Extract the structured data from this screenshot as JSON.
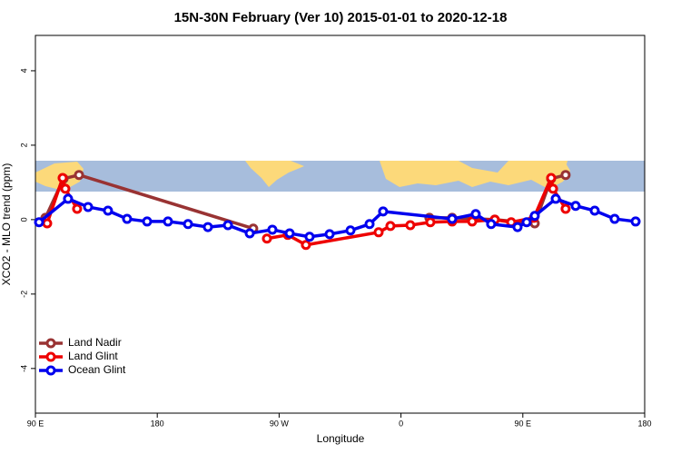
{
  "chart_data": {
    "type": "line",
    "title": "15N-30N February (Ver 10)   2015-01-01 to 2020-12-18",
    "x_label": "Longitude",
    "y_label": "XCO2 - MLO trend (ppm)",
    "xlim": [
      90,
      540
    ],
    "ylim": [
      -5.2,
      4.95
    ],
    "xticks": [
      {
        "value": 90,
        "label": "90 E"
      },
      180,
      {
        "value": 270,
        "label": "90 W"
      },
      {
        "value": 360,
        "label": "0"
      },
      {
        "value": 450,
        "label": "90 E"
      },
      {
        "value": 540,
        "label": "180"
      }
    ],
    "yticks": [
      -4,
      -2,
      0,
      2,
      4
    ],
    "legend": "bottom-left",
    "series": [
      {
        "name": "Land Nadir",
        "color": "#993333",
        "x": [
          97.4,
          110.8,
          122.2,
          250.9,
          352.2,
          381.0,
          397.8,
          429.3,
          458.8,
          470.9,
          481.6
        ],
        "values": [
          0.05,
          1.1,
          1.2,
          -0.24,
          null,
          0.05,
          0.05,
          0,
          -0.1,
          1.1,
          1.2
        ]
      },
      {
        "name": "Land Glint",
        "color": "#ee0000",
        "x": [
          98.7,
          110.1,
          112.1,
          120.8,
          251.6,
          261.0,
          276.4,
          289.8,
          343.5,
          352.2,
          366.9,
          381.7,
          397.8,
          412.6,
          429.3,
          441.4,
          458.2,
          470.9,
          472.3,
          481.6
        ],
        "values": [
          -0.1,
          1.12,
          0.83,
          0.29,
          null,
          -0.51,
          -0.41,
          -0.68,
          -0.34,
          -0.17,
          -0.15,
          -0.07,
          -0.05,
          -0.05,
          0,
          -0.07,
          0.05,
          1.12,
          0.83,
          0.29
        ]
      },
      {
        "name": "Ocean Glint",
        "color": "#0000ee",
        "x": [
          92.7,
          114.1,
          128.9,
          143.6,
          157.7,
          172.5,
          187.9,
          202.7,
          217.4,
          232.2,
          248.3,
          265.0,
          277.8,
          292.5,
          307.3,
          322.7,
          336.8,
          346.8,
          397.8,
          415.2,
          426.6,
          446.1,
          452.8,
          458.8,
          474.3,
          489.0,
          503.1,
          517.8,
          533.3
        ],
        "values": [
          -0.07,
          0.56,
          0.34,
          0.24,
          0.02,
          -0.05,
          -0.05,
          -0.12,
          -0.2,
          -0.15,
          -0.37,
          -0.27,
          -0.37,
          -0.46,
          -0.39,
          -0.29,
          -0.12,
          0.22,
          0.02,
          0.15,
          -0.12,
          -0.2,
          -0.07,
          0.1,
          0.56,
          0.37,
          0.24,
          0.02,
          -0.05
        ]
      }
    ]
  }
}
